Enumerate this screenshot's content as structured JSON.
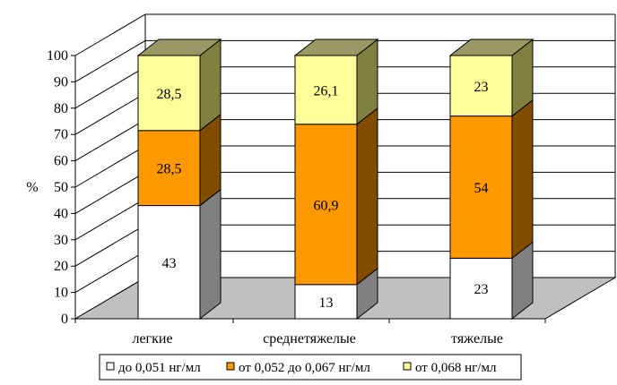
{
  "chart_data": {
    "type": "bar",
    "stacked": true,
    "percent": true,
    "three_d": true,
    "ylabel": "%",
    "ylim": [
      0,
      100
    ],
    "yticks": [
      "0",
      "10",
      "20",
      "30",
      "40",
      "50",
      "60",
      "70",
      "80",
      "90",
      "100"
    ],
    "categories": [
      "легкие",
      "среднетяжелые",
      "тяжелые"
    ],
    "series": [
      {
        "name": "до 0,051 нг/мл",
        "values": [
          43,
          13,
          23
        ],
        "labels": [
          "43",
          "13",
          "23"
        ],
        "color": "#ffffff",
        "side_color": "#808080",
        "top_color": "#c0c0c0"
      },
      {
        "name": "от 0,052 до 0,067 нг/мл",
        "values": [
          28.5,
          60.9,
          54
        ],
        "labels": [
          "28,5",
          "60,9",
          "54"
        ],
        "color": "#ff9900",
        "side_color": "#804c00",
        "top_color": "#cc7a00"
      },
      {
        "name": "от 0,068 нг/мл",
        "values": [
          28.5,
          26.1,
          23
        ],
        "labels": [
          "28,5",
          "26,1",
          "23"
        ],
        "color": "#ffff99",
        "side_color": "#808040",
        "top_color": "#999966"
      }
    ],
    "grid": true,
    "legend_position": "bottom",
    "floor_color": "#c0c0c0"
  }
}
